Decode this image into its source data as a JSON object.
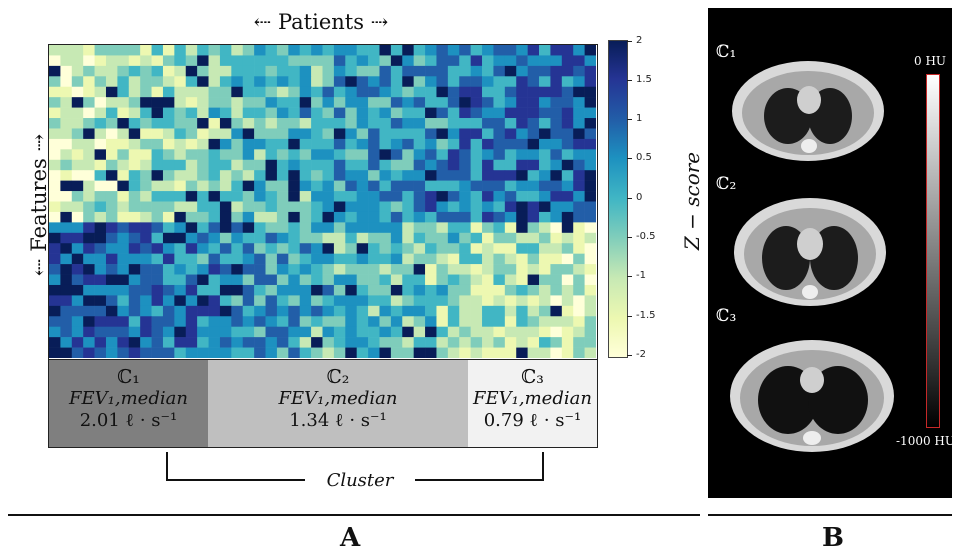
{
  "panel_a": {
    "x_axis_label": "⇠  Patients  ⇢",
    "y_axis_label": "⇠  Features  ⇢",
    "colorbar": {
      "label": "Z − score",
      "ticks": [
        "2",
        "1.5",
        "1",
        "0.5",
        "0",
        "-0.5",
        "-1",
        "-1.5",
        "-2"
      ],
      "min": -2,
      "max": 2
    },
    "clusters": [
      {
        "symbol": "ℂ₁",
        "fev_label": "FEV₁,median",
        "fev_value": "2.01 ℓ · s⁻¹",
        "color": "#7f7f7f"
      },
      {
        "symbol": "ℂ₂",
        "fev_label": "FEV₁,median",
        "fev_value": "1.34 ℓ · s⁻¹",
        "color": "#bfbfbf"
      },
      {
        "symbol": "ℂ₃",
        "fev_label": "FEV₁,median",
        "fev_value": "0.79 ℓ · s⁻¹",
        "color": "#f2f2f2"
      }
    ],
    "cluster_label": "Cluster",
    "panel_letter": "A"
  },
  "panel_b": {
    "scans": [
      {
        "label": "ℂ₁"
      },
      {
        "label": "ℂ₂"
      },
      {
        "label": "ℂ₃"
      }
    ],
    "hu_top": "0 HU",
    "hu_bottom": "-1000 HU",
    "panel_letter": "B"
  },
  "chart_data": {
    "type": "heatmap",
    "xlabel": "Patients",
    "ylabel": "Features",
    "colorbar_label": "Z − score",
    "zlim": [
      -2,
      2
    ],
    "rows": 30,
    "cols": 48,
    "palette": [
      "#ffffd9",
      "#edf8b1",
      "#c7e9b4",
      "#7fcdbb",
      "#41b6c4",
      "#1d91c0",
      "#225ea8",
      "#253494",
      "#081d58"
    ]
  }
}
